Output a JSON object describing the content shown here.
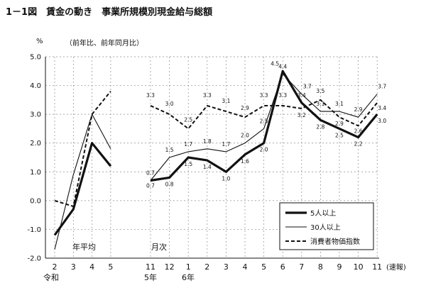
{
  "page": {
    "title": "1－1図　賃金の動き　事業所規模別現金給与総額",
    "unit_label": "%",
    "subtitle": "（前年比、前年同月比）",
    "group_label_annual": "年平均",
    "group_label_monthly": "月次",
    "era_reiwa": "令和",
    "era_5": "5年",
    "era_6": "6年",
    "suffix_label": "(速報)"
  },
  "chart_data": {
    "type": "line",
    "title": "賃金の動き　事業所規模別現金給与総額",
    "ylabel": "%",
    "ylim": [
      -2.0,
      5.0
    ],
    "yticks": [
      "5.0",
      "4.0",
      "3.0",
      "2.0",
      "1.0",
      "0.0",
      "-1.0",
      "-2.0"
    ],
    "grid": true,
    "legend_position": "bottom-right",
    "annual_x": [
      "2",
      "3",
      "4",
      "5"
    ],
    "monthly_x": [
      "11",
      "12",
      "1",
      "2",
      "3",
      "4",
      "5",
      "6",
      "7",
      "8",
      "9",
      "10",
      "11"
    ],
    "series": [
      {
        "name": "5人以上",
        "style": "thick-solid",
        "annual": [
          -1.2,
          -0.3,
          2.0,
          1.2
        ],
        "monthly": [
          0.7,
          0.8,
          1.5,
          1.4,
          1.0,
          1.6,
          2.0,
          4.5,
          3.4,
          2.8,
          2.5,
          2.2,
          3.0
        ],
        "monthly_labels": [
          "0.7",
          "0.8",
          "1.5",
          "1.4",
          "1.0",
          "1.6",
          "2.0",
          "4.5",
          "3.4",
          "2.8",
          "2.5",
          "2.2",
          "3.0"
        ]
      },
      {
        "name": "30人以上",
        "style": "thin-solid",
        "annual": [
          -1.7,
          0.9,
          3.0,
          1.8
        ],
        "monthly": [
          0.7,
          1.5,
          1.7,
          1.8,
          1.7,
          2.0,
          2.5,
          4.4,
          3.7,
          3.1,
          3.1,
          2.9,
          3.7
        ],
        "monthly_labels": [
          "0.7",
          "1.5",
          "1.7",
          "1.8",
          "1.7",
          "2.0",
          "2.5",
          "4.4",
          "3.7",
          "3.1",
          "3.1",
          "2.9",
          "3.7"
        ]
      },
      {
        "name": "消費者物価指数",
        "style": "dashed",
        "annual": [
          0.0,
          -0.2,
          3.0,
          3.8
        ],
        "monthly": [
          3.3,
          3.0,
          2.5,
          3.3,
          3.1,
          2.9,
          3.3,
          3.3,
          3.2,
          3.5,
          2.9,
          2.6,
          3.4
        ],
        "monthly_labels": [
          "3.3",
          "3.0",
          "2.5",
          "3.3",
          "3.1",
          "2.9",
          "3.3",
          "3.3",
          "3.2",
          "3.5",
          "2.9",
          "2.6",
          "3.4"
        ]
      }
    ]
  },
  "colors": {
    "line": "#111111",
    "grid": "#8c8c8c",
    "background": "#ffffff"
  }
}
